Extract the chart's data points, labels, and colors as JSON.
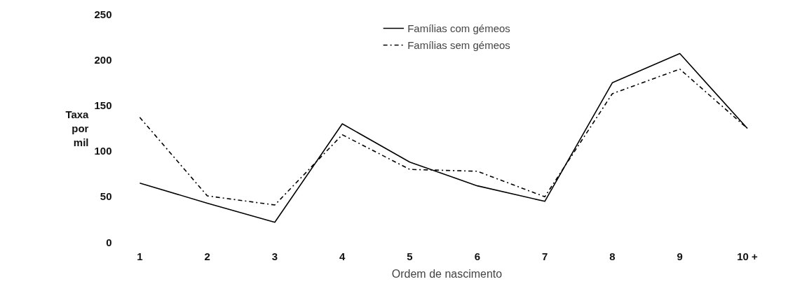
{
  "chart_data": {
    "type": "line",
    "xlabel": "Ordem de nascimento",
    "ylabel": "Taxa\npor\nmil",
    "categories": [
      "1",
      "2",
      "3",
      "4",
      "5",
      "6",
      "7",
      "8",
      "9",
      "10 +"
    ],
    "series": [
      {
        "name": "Famílias com gémeos",
        "color": "#000000",
        "line_style": "solid",
        "values": [
          65,
          43,
          22,
          130,
          88,
          62,
          45,
          175,
          207,
          125
        ]
      },
      {
        "name": "Famílias sem gémeos",
        "color": "#000000",
        "line_style": "dashed",
        "values": [
          137,
          51,
          41,
          118,
          80,
          78,
          50,
          163,
          190,
          125
        ]
      }
    ],
    "ylim": [
      0,
      250
    ],
    "yticks": [
      0,
      50,
      100,
      150,
      200,
      250
    ],
    "grid": false,
    "legend": "top",
    "marker": "none"
  }
}
